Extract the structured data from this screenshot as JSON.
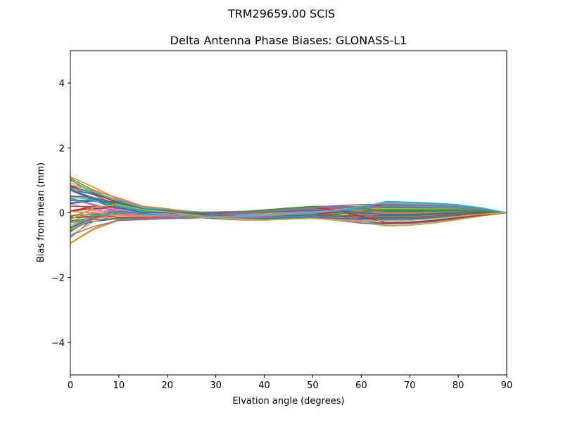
{
  "figure": {
    "suptitle": "TRM29659.00      SCIS",
    "title": "Delta Antenna Phase Biases: GLONASS-L1"
  },
  "chart_data": {
    "type": "line",
    "title": "Delta Antenna Phase Biases: GLONASS-L1",
    "suptitle": "TRM29659.00      SCIS",
    "xlabel": "Elvation angle (degrees)",
    "ylabel": "Bias from mean (mm)",
    "xlim": [
      0,
      90
    ],
    "ylim": [
      -5,
      5
    ],
    "xticks": [
      0,
      10,
      20,
      30,
      40,
      50,
      60,
      70,
      80,
      90
    ],
    "yticks": [
      -4,
      -2,
      0,
      2,
      4
    ],
    "ytick_labels": [
      "−4",
      "−2",
      "0",
      "2",
      "4"
    ],
    "grid": false,
    "legend": null,
    "x": [
      0,
      5,
      10,
      15,
      20,
      25,
      30,
      35,
      40,
      45,
      50,
      55,
      60,
      65,
      70,
      75,
      80,
      85,
      90
    ],
    "series_count": 60,
    "envelope": {
      "upper": [
        1.12,
        0.9,
        0.55,
        0.3,
        0.32,
        0.32,
        0.28,
        0.25,
        0.22,
        0.2,
        0.2,
        0.28,
        0.33,
        0.35,
        0.33,
        0.3,
        0.25,
        0.15,
        0.0
      ],
      "lower": [
        -0.95,
        -0.6,
        -0.35,
        -0.33,
        -0.38,
        -0.45,
        -0.43,
        -0.4,
        -0.35,
        -0.25,
        -0.18,
        -0.28,
        -0.38,
        -0.42,
        -0.4,
        -0.33,
        -0.22,
        -0.1,
        0.0
      ]
    },
    "colors": [
      "#1f77b4",
      "#ff7f0e",
      "#2ca02c",
      "#d62728",
      "#9467bd",
      "#8c564b",
      "#e377c2",
      "#7f7f7f",
      "#bcbd22",
      "#17becf"
    ],
    "note": "Approximately 60 overlapping series; all converge to 0 at 90 degrees"
  }
}
